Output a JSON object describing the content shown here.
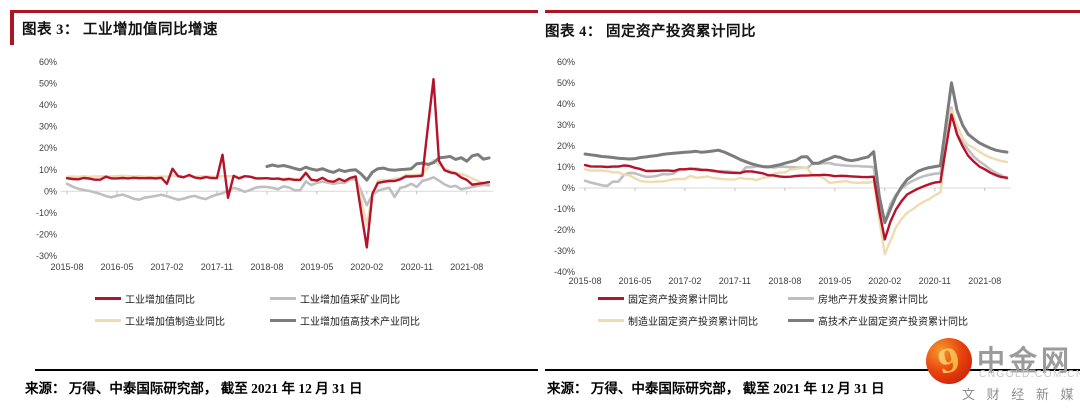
{
  "accent_color": "#AC1620",
  "left_panel": {
    "title": "图表 3：  工业增加值同比增速",
    "source": "来源： 万得、中泰国际研究部， 截至 2021 年 12 月 31 日",
    "chart_data": {
      "type": "line",
      "title": "工业增加值同比增速",
      "unit": "%",
      "x_start": "2015-08",
      "x_end": "2021-12",
      "x_frequency": "monthly",
      "n_points": 77,
      "x_tick_labels": [
        "2015-08",
        "2016-05",
        "2017-02",
        "2017-11",
        "2018-08",
        "2019-05",
        "2020-02",
        "2020-11",
        "2021-08"
      ],
      "x_tick_every": 9,
      "ylim": [
        -30,
        60
      ],
      "y_tick_step": 10,
      "grid": "zero-line-only",
      "legend_position": "bottom",
      "draw_order": [
        1,
        2,
        3,
        0
      ],
      "series": [
        {
          "name": "工业增加值同比",
          "color": "#B5122B",
          "width": 2.4,
          "values": [
            6.1,
            5.7,
            5.6,
            6.2,
            5.9,
            5.4,
            5.4,
            6.8,
            6.0,
            6.0,
            6.2,
            6.0,
            6.3,
            6.1,
            6.1,
            6.2,
            6.0,
            6.3,
            3.5,
            10.5,
            7.0,
            6.5,
            7.6,
            6.4,
            6.0,
            6.6,
            6.2,
            6.1,
            17.0,
            -3.0,
            7.2,
            6.0,
            7.0,
            6.8,
            6.0,
            6.0,
            6.1,
            5.8,
            5.9,
            5.4,
            5.7,
            5.3,
            5.3,
            8.5,
            5.4,
            5.0,
            6.3,
            4.8,
            4.4,
            5.8,
            4.7,
            6.2,
            6.9,
            -10.0,
            -26.0,
            -1.1,
            3.9,
            4.4,
            4.8,
            4.8,
            5.6,
            6.9,
            6.9,
            7.0,
            7.3,
            30.0,
            52.0,
            14.1,
            9.8,
            8.8,
            8.3,
            6.4,
            5.3,
            3.1,
            3.5,
            3.8,
            4.3
          ]
        },
        {
          "name": "工业增加值采矿业同比",
          "color": "#BFBFBF",
          "width": 2.6,
          "values": [
            3.5,
            2.2,
            1.2,
            0.6,
            0.2,
            -0.5,
            -1.2,
            -2.2,
            -2.8,
            -2.0,
            -1.5,
            -2.4,
            -3.4,
            -3.9,
            -2.9,
            -2.6,
            -2.1,
            -1.6,
            -2.2,
            -3.1,
            -3.9,
            -3.4,
            -2.6,
            -2.1,
            -3.1,
            -3.6,
            -2.4,
            -1.5,
            -0.9,
            0.4,
            1.6,
            0.9,
            -0.2,
            0.6,
            1.7,
            2.1,
            2.0,
            1.6,
            1.0,
            2.3,
            1.8,
            0.5,
            0.5,
            4.6,
            2.9,
            3.9,
            4.5,
            4.0,
            3.5,
            4.0,
            3.9,
            5.5,
            5.6,
            0.0,
            -6.5,
            -1.7,
            0.3,
            1.1,
            1.7,
            -2.6,
            1.6,
            2.2,
            3.5,
            2.0,
            4.9,
            5.5,
            6.5,
            5.0,
            3.2,
            2.1,
            2.5,
            1.0,
            1.5,
            2.0,
            2.5,
            3.0,
            2.8
          ]
        },
        {
          "name": "工业增加值制造业同比",
          "color": "#EFDBB0",
          "width": 2.4,
          "values": [
            6.8,
            6.9,
            6.7,
            7.0,
            6.8,
            6.9,
            6.9,
            7.0,
            6.9,
            7.1,
            7.2,
            7.0,
            6.9,
            7.0,
            6.8,
            6.7,
            6.8,
            6.9,
            6.8,
            7.4,
            7.0,
            6.9,
            7.3,
            6.7,
            6.9,
            7.0,
            6.8,
            6.8,
            7.0,
            7.0,
            7.0,
            6.6,
            7.0,
            6.6,
            6.3,
            6.2,
            6.1,
            5.7,
            6.1,
            5.6,
            6.2,
            5.6,
            5.6,
            9.0,
            5.3,
            5.0,
            6.2,
            4.5,
            4.3,
            5.6,
            4.6,
            6.3,
            7.0,
            -4.0,
            -15.7,
            -1.8,
            5.0,
            5.2,
            5.1,
            6.0,
            6.0,
            7.6,
            7.5,
            7.7,
            7.7,
            11.0,
            14.5,
            12.5,
            10.5,
            9.5,
            8.7,
            8.0,
            7.2,
            6.0,
            4.8,
            3.8,
            4.0
          ]
        },
        {
          "name": "工业增加值高技术产业同比",
          "color": "#7C7C7C",
          "width": 3,
          "values": [
            null,
            null,
            null,
            null,
            null,
            null,
            null,
            null,
            null,
            null,
            null,
            null,
            null,
            null,
            null,
            null,
            null,
            null,
            null,
            null,
            null,
            null,
            null,
            null,
            null,
            null,
            null,
            null,
            null,
            null,
            null,
            null,
            null,
            null,
            null,
            null,
            11.5,
            12.2,
            11.6,
            12.0,
            11.4,
            10.6,
            10.0,
            11.2,
            10.3,
            9.8,
            10.5,
            9.5,
            8.8,
            10.0,
            9.2,
            9.8,
            10.0,
            8.0,
            5.2,
            8.9,
            10.5,
            10.8,
            10.0,
            9.8,
            10.1,
            10.2,
            10.5,
            12.8,
            13.1,
            12.5,
            13.3,
            15.5,
            15.8,
            16.2,
            14.8,
            15.6,
            14.0,
            16.5,
            17.1,
            14.9,
            15.5
          ]
        }
      ]
    }
  },
  "right_panel": {
    "title": "图表 4：  固定资产投资累计同比",
    "source": "来源： 万得、中泰国际研究部， 截至 2021 年 12 月 31 日",
    "chart_data": {
      "type": "line",
      "title": "固定资产投资累计同比",
      "unit": "%",
      "x_start": "2015-08",
      "x_end": "2021-12",
      "x_frequency": "monthly",
      "n_points": 77,
      "x_tick_labels": [
        "2015-08",
        "2016-05",
        "2017-02",
        "2017-11",
        "2018-08",
        "2019-05",
        "2020-02",
        "2020-11",
        "2021-08"
      ],
      "x_tick_every": 9,
      "ylim": [
        -40,
        60
      ],
      "y_tick_step": 10,
      "grid": "zero-line-only",
      "legend_position": "bottom",
      "draw_order": [
        1,
        2,
        3,
        0
      ],
      "series": [
        {
          "name": "固定资产投资累计同比",
          "color": "#B5122B",
          "width": 2.4,
          "values": [
            10.9,
            10.3,
            10.2,
            10.2,
            10.0,
            10.2,
            10.2,
            10.7,
            10.5,
            9.6,
            9.0,
            8.1,
            8.1,
            8.2,
            8.3,
            8.3,
            8.1,
            8.9,
            8.9,
            9.2,
            8.9,
            8.6,
            8.6,
            8.3,
            7.8,
            7.5,
            7.3,
            7.2,
            7.2,
            7.9,
            7.9,
            7.5,
            7.0,
            6.1,
            6.0,
            5.5,
            5.3,
            5.4,
            5.7,
            5.9,
            5.9,
            6.1,
            6.1,
            6.3,
            6.1,
            5.6,
            5.8,
            5.7,
            5.5,
            5.4,
            5.2,
            5.2,
            5.4,
            -11.0,
            -24.5,
            -16.1,
            -10.3,
            -6.3,
            -3.1,
            -1.6,
            -0.3,
            0.8,
            1.8,
            2.6,
            2.9,
            19.0,
            35.0,
            25.6,
            19.9,
            15.4,
            12.6,
            10.3,
            8.9,
            7.3,
            6.1,
            5.2,
            4.9
          ]
        },
        {
          "name": "房地产开发投资累计同比",
          "color": "#BFBFBF",
          "width": 2.6,
          "values": [
            3.5,
            2.6,
            2.0,
            1.3,
            1.0,
            3.0,
            3.0,
            6.2,
            7.2,
            7.0,
            6.1,
            5.3,
            5.4,
            5.8,
            6.6,
            6.5,
            6.9,
            8.9,
            8.9,
            9.1,
            9.3,
            8.8,
            8.5,
            7.9,
            7.9,
            8.1,
            7.8,
            7.5,
            7.0,
            9.9,
            9.9,
            10.4,
            10.3,
            10.2,
            9.7,
            10.2,
            10.1,
            9.9,
            9.7,
            9.7,
            9.5,
            11.6,
            11.6,
            11.8,
            11.9,
            11.2,
            10.9,
            10.6,
            10.5,
            10.5,
            10.3,
            10.2,
            9.9,
            -8.0,
            -16.3,
            -7.7,
            -3.3,
            -0.3,
            1.9,
            3.4,
            4.6,
            5.6,
            6.3,
            6.8,
            7.0,
            22.0,
            38.3,
            25.6,
            21.6,
            18.3,
            15.0,
            12.7,
            10.9,
            8.8,
            7.2,
            6.0,
            4.4
          ]
        },
        {
          "name": "制造业固定资产投资累计同比",
          "color": "#EFDBB0",
          "width": 2.4,
          "values": [
            8.9,
            8.3,
            8.3,
            8.4,
            8.1,
            7.5,
            7.5,
            6.4,
            6.0,
            4.6,
            3.3,
            3.0,
            2.8,
            3.1,
            3.1,
            3.6,
            4.2,
            4.3,
            4.3,
            5.8,
            4.9,
            5.1,
            5.5,
            4.8,
            4.5,
            4.2,
            4.1,
            4.1,
            4.8,
            4.3,
            4.3,
            3.8,
            4.8,
            5.2,
            6.8,
            7.3,
            7.5,
            8.7,
            9.1,
            9.5,
            9.5,
            5.9,
            5.9,
            4.6,
            2.5,
            2.7,
            3.0,
            3.3,
            2.6,
            2.5,
            2.6,
            2.5,
            3.1,
            -15.0,
            -31.5,
            -25.2,
            -18.8,
            -14.8,
            -11.7,
            -10.2,
            -8.1,
            -6.5,
            -5.3,
            -3.5,
            -2.2,
            20.0,
            37.3,
            29.8,
            23.8,
            20.4,
            19.2,
            17.3,
            15.7,
            14.5,
            13.6,
            12.8,
            12.4
          ]
        },
        {
          "name": "高技术产业固定资产投资累计同比",
          "color": "#7C7C7C",
          "width": 3,
          "values": [
            16.2,
            15.8,
            15.5,
            15.0,
            14.8,
            14.5,
            14.2,
            14.0,
            13.8,
            14.0,
            14.5,
            14.8,
            15.2,
            15.5,
            16.0,
            16.3,
            16.5,
            16.8,
            17.0,
            17.2,
            17.5,
            17.0,
            17.3,
            17.6,
            18.0,
            17.2,
            16.0,
            14.8,
            13.5,
            12.5,
            11.5,
            10.8,
            10.2,
            10.0,
            10.5,
            11.0,
            11.8,
            12.5,
            13.2,
            14.8,
            14.9,
            11.8,
            11.8,
            13.0,
            14.0,
            15.1,
            14.5,
            13.5,
            13.0,
            13.5,
            14.2,
            14.8,
            17.3,
            -4.0,
            -16.5,
            -10.0,
            -4.0,
            0.5,
            4.0,
            6.0,
            8.0,
            9.0,
            9.7,
            10.2,
            10.6,
            30.0,
            50.1,
            37.0,
            30.0,
            25.6,
            23.5,
            21.5,
            20.2,
            19.0,
            18.0,
            17.5,
            17.1
          ]
        }
      ]
    }
  },
  "watermark": {
    "brand": "中金网",
    "domain": "CNGOLD.COM.CN",
    "tagline": "文 财 经 新 媒 体",
    "logo_icon": "gold-swirl-logo",
    "logo_colors": {
      "circle_outer": "#C9200A",
      "circle_inner": "#F59A2B",
      "swirl": "#F5C033"
    }
  }
}
